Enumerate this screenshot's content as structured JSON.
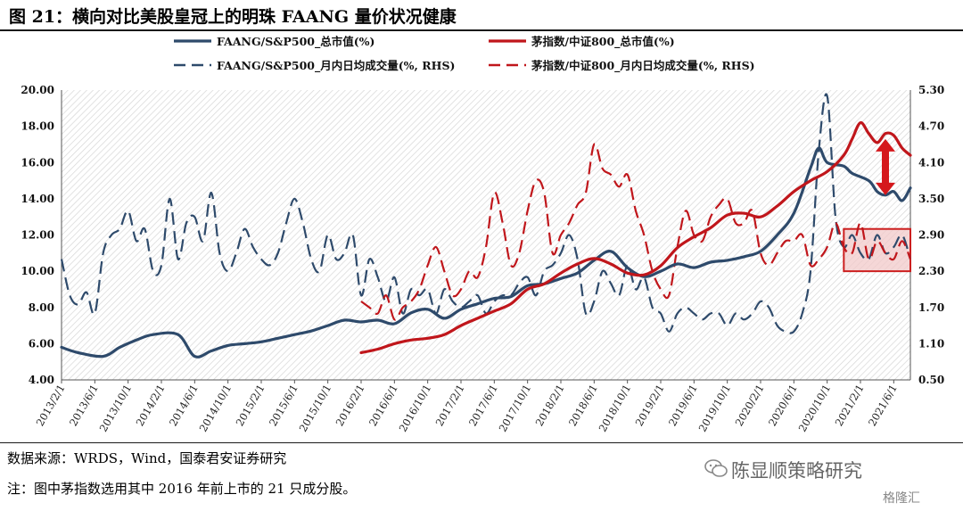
{
  "header": {
    "title": "图 21：横向对比美股皇冠上的明珠 FAANG 量价状况健康"
  },
  "footer": {
    "source": "数据来源：WRDS，Wind，国泰君安证券研究",
    "note": "注：图中茅指数选用其中 2016 年前上市的 21 只成分股。",
    "brand": "陈显顺策略研究",
    "corner_brand": "格隆汇"
  },
  "icons": {
    "brand": "wechat-icon",
    "highlight_arrow": "double-arrow-icon"
  },
  "colors": {
    "navy": "#2e4a6b",
    "red": "#c0161b",
    "highlight_fill": "#f2c9c9",
    "highlight_stroke": "#cc1f1f"
  },
  "chart_data": {
    "type": "line",
    "title": "",
    "ylim_left": [
      4,
      20
    ],
    "yticks_left": [
      "4.00",
      "6.00",
      "8.00",
      "10.00",
      "12.00",
      "14.00",
      "16.00",
      "18.00",
      "20.00"
    ],
    "ylim_right": [
      0.5,
      5.3
    ],
    "yticks_right": [
      "0.50",
      "1.10",
      "1.70",
      "2.30",
      "2.90",
      "3.50",
      "4.10",
      "4.70",
      "5.30"
    ],
    "x_range": [
      "2013/2/1",
      "2021/8/1"
    ],
    "xticks": [
      "2013/2/1",
      "2013/6/1",
      "2013/10/1",
      "2014/2/1",
      "2014/6/1",
      "2014/10/1",
      "2015/2/1",
      "2015/6/1",
      "2015/10/1",
      "2016/2/1",
      "2016/6/1",
      "2016/10/1",
      "2017/2/1",
      "2017/6/1",
      "2017/10/1",
      "2018/2/1",
      "2018/6/1",
      "2018/10/1",
      "2019/2/1",
      "2019/6/1",
      "2019/10/1",
      "2020/2/1",
      "2020/6/1",
      "2020/10/1",
      "2021/2/1",
      "2021/6/1"
    ],
    "grid": "hatched background",
    "legend_position": "top",
    "series": [
      {
        "name": "FAANG/S&P500_总市值(%)",
        "axis": "left",
        "style": "solid",
        "color": "#2e4a6b",
        "points": [
          [
            "2013/2/1",
            5.8
          ],
          [
            "2013/4/1",
            5.5
          ],
          [
            "2013/7/1",
            5.3
          ],
          [
            "2013/9/1",
            5.8
          ],
          [
            "2013/11/1",
            6.2
          ],
          [
            "2014/1/1",
            6.5
          ],
          [
            "2014/4/1",
            6.5
          ],
          [
            "2014/6/1",
            5.3
          ],
          [
            "2014/8/1",
            5.6
          ],
          [
            "2014/10/1",
            5.9
          ],
          [
            "2014/12/1",
            6.0
          ],
          [
            "2015/2/1",
            6.1
          ],
          [
            "2015/4/1",
            6.3
          ],
          [
            "2015/6/1",
            6.5
          ],
          [
            "2015/8/1",
            6.7
          ],
          [
            "2015/10/1",
            7.0
          ],
          [
            "2015/12/1",
            7.3
          ],
          [
            "2016/2/1",
            7.2
          ],
          [
            "2016/4/1",
            7.3
          ],
          [
            "2016/6/1",
            7.1
          ],
          [
            "2016/8/1",
            7.7
          ],
          [
            "2016/10/1",
            7.9
          ],
          [
            "2016/12/1",
            7.4
          ],
          [
            "2017/2/1",
            7.9
          ],
          [
            "2017/4/1",
            8.2
          ],
          [
            "2017/6/1",
            8.5
          ],
          [
            "2017/8/1",
            8.6
          ],
          [
            "2017/10/1",
            9.2
          ],
          [
            "2017/12/1",
            9.3
          ],
          [
            "2018/2/1",
            9.6
          ],
          [
            "2018/4/1",
            9.9
          ],
          [
            "2018/6/1",
            10.6
          ],
          [
            "2018/8/1",
            11.1
          ],
          [
            "2018/10/1",
            10.2
          ],
          [
            "2018/12/1",
            9.7
          ],
          [
            "2019/2/1",
            10.0
          ],
          [
            "2019/4/1",
            10.4
          ],
          [
            "2019/6/1",
            10.2
          ],
          [
            "2019/8/1",
            10.5
          ],
          [
            "2019/10/1",
            10.6
          ],
          [
            "2019/12/1",
            10.8
          ],
          [
            "2020/2/1",
            11.1
          ],
          [
            "2020/4/1",
            12.0
          ],
          [
            "2020/6/1",
            13.2
          ],
          [
            "2020/8/1",
            15.7
          ],
          [
            "2020/9/1",
            16.8
          ],
          [
            "2020/10/1",
            16.0
          ],
          [
            "2020/12/1",
            15.8
          ],
          [
            "2021/1/1",
            15.4
          ],
          [
            "2021/3/1",
            15.0
          ],
          [
            "2021/4/1",
            14.4
          ],
          [
            "2021/5/1",
            14.2
          ],
          [
            "2021/6/1",
            14.4
          ],
          [
            "2021/7/1",
            13.9
          ],
          [
            "2021/8/1",
            14.6
          ]
        ]
      },
      {
        "name": "茅指数/中证800_总市值(%)",
        "axis": "left",
        "style": "solid",
        "color": "#c0161b",
        "points": [
          [
            "2016/2/1",
            5.5
          ],
          [
            "2016/4/1",
            5.7
          ],
          [
            "2016/6/1",
            6.0
          ],
          [
            "2016/8/1",
            6.2
          ],
          [
            "2016/10/1",
            6.3
          ],
          [
            "2016/12/1",
            6.5
          ],
          [
            "2017/2/1",
            7.0
          ],
          [
            "2017/4/1",
            7.4
          ],
          [
            "2017/6/1",
            7.8
          ],
          [
            "2017/8/1",
            8.2
          ],
          [
            "2017/10/1",
            9.0
          ],
          [
            "2017/12/1",
            9.3
          ],
          [
            "2018/2/1",
            9.9
          ],
          [
            "2018/4/1",
            10.4
          ],
          [
            "2018/6/1",
            10.7
          ],
          [
            "2018/8/1",
            10.4
          ],
          [
            "2018/10/1",
            9.9
          ],
          [
            "2018/12/1",
            9.8
          ],
          [
            "2019/2/1",
            10.3
          ],
          [
            "2019/4/1",
            11.3
          ],
          [
            "2019/6/1",
            11.9
          ],
          [
            "2019/8/1",
            12.4
          ],
          [
            "2019/10/1",
            13.1
          ],
          [
            "2019/12/1",
            13.2
          ],
          [
            "2020/2/1",
            13.0
          ],
          [
            "2020/4/1",
            13.6
          ],
          [
            "2020/6/1",
            14.4
          ],
          [
            "2020/8/1",
            15.0
          ],
          [
            "2020/10/1",
            15.5
          ],
          [
            "2020/12/1",
            16.4
          ],
          [
            "2021/1/1",
            17.3
          ],
          [
            "2021/2/1",
            18.2
          ],
          [
            "2021/3/1",
            17.6
          ],
          [
            "2021/4/1",
            17.1
          ],
          [
            "2021/5/1",
            17.6
          ],
          [
            "2021/6/1",
            17.5
          ],
          [
            "2021/7/1",
            16.8
          ],
          [
            "2021/8/1",
            16.4
          ]
        ]
      },
      {
        "name": "FAANG/S&P500_月内日均成交量(%, RHS)",
        "axis": "right",
        "style": "dashed",
        "color": "#2e4a6b",
        "points": [
          [
            "2013/2/1",
            2.5
          ],
          [
            "2013/3/1",
            1.9
          ],
          [
            "2013/4/1",
            1.75
          ],
          [
            "2013/5/1",
            1.95
          ],
          [
            "2013/6/1",
            1.6
          ],
          [
            "2013/7/1",
            2.6
          ],
          [
            "2013/8/1",
            2.9
          ],
          [
            "2013/9/1",
            3.0
          ],
          [
            "2013/10/1",
            3.3
          ],
          [
            "2013/11/1",
            2.8
          ],
          [
            "2013/12/1",
            3.0
          ],
          [
            "2014/1/1",
            2.3
          ],
          [
            "2014/2/1",
            2.4
          ],
          [
            "2014/3/1",
            3.5
          ],
          [
            "2014/4/1",
            2.5
          ],
          [
            "2014/5/1",
            3.1
          ],
          [
            "2014/6/1",
            3.2
          ],
          [
            "2014/7/1",
            2.8
          ],
          [
            "2014/8/1",
            3.6
          ],
          [
            "2014/9/1",
            2.6
          ],
          [
            "2014/10/1",
            2.3
          ],
          [
            "2014/11/1",
            2.6
          ],
          [
            "2014/12/1",
            3.0
          ],
          [
            "2015/1/1",
            2.7
          ],
          [
            "2015/2/1",
            2.5
          ],
          [
            "2015/3/1",
            2.4
          ],
          [
            "2015/4/1",
            2.6
          ],
          [
            "2015/5/1",
            3.1
          ],
          [
            "2015/6/1",
            3.5
          ],
          [
            "2015/7/1",
            3.1
          ],
          [
            "2015/8/1",
            2.5
          ],
          [
            "2015/9/1",
            2.3
          ],
          [
            "2015/10/1",
            2.9
          ],
          [
            "2015/11/1",
            2.5
          ],
          [
            "2015/12/1",
            2.6
          ],
          [
            "2016/1/1",
            2.9
          ],
          [
            "2016/2/1",
            1.9
          ],
          [
            "2016/3/1",
            2.5
          ],
          [
            "2016/4/1",
            2.2
          ],
          [
            "2016/5/1",
            1.8
          ],
          [
            "2016/6/1",
            2.2
          ],
          [
            "2016/7/1",
            1.6
          ],
          [
            "2016/8/1",
            2.0
          ],
          [
            "2016/9/1",
            1.9
          ],
          [
            "2016/10/1",
            2.0
          ],
          [
            "2016/11/1",
            1.6
          ],
          [
            "2016/12/1",
            2.0
          ],
          [
            "2017/1/1",
            1.8
          ],
          [
            "2017/2/1",
            1.7
          ],
          [
            "2017/3/1",
            1.8
          ],
          [
            "2017/4/1",
            1.9
          ],
          [
            "2017/5/1",
            1.6
          ],
          [
            "2017/6/1",
            1.8
          ],
          [
            "2017/7/1",
            1.9
          ],
          [
            "2017/8/1",
            1.9
          ],
          [
            "2017/9/1",
            2.1
          ],
          [
            "2017/10/1",
            2.2
          ],
          [
            "2017/11/1",
            1.9
          ],
          [
            "2017/12/1",
            2.3
          ],
          [
            "2018/1/1",
            2.4
          ],
          [
            "2018/2/1",
            2.6
          ],
          [
            "2018/3/1",
            2.9
          ],
          [
            "2018/4/1",
            2.5
          ],
          [
            "2018/5/1",
            1.6
          ],
          [
            "2018/6/1",
            1.8
          ],
          [
            "2018/7/1",
            2.3
          ],
          [
            "2018/8/1",
            2.1
          ],
          [
            "2018/9/1",
            1.9
          ],
          [
            "2018/10/1",
            2.4
          ],
          [
            "2018/11/1",
            2.0
          ],
          [
            "2018/12/1",
            2.2
          ],
          [
            "2019/1/1",
            1.7
          ],
          [
            "2019/2/1",
            1.6
          ],
          [
            "2019/3/1",
            1.3
          ],
          [
            "2019/4/1",
            1.6
          ],
          [
            "2019/5/1",
            1.7
          ],
          [
            "2019/6/1",
            1.6
          ],
          [
            "2019/7/1",
            1.5
          ],
          [
            "2019/8/1",
            1.6
          ],
          [
            "2019/9/1",
            1.6
          ],
          [
            "2019/10/1",
            1.4
          ],
          [
            "2019/11/1",
            1.6
          ],
          [
            "2019/12/1",
            1.5
          ],
          [
            "2020/1/1",
            1.6
          ],
          [
            "2020/2/1",
            1.8
          ],
          [
            "2020/3/1",
            1.7
          ],
          [
            "2020/4/1",
            1.4
          ],
          [
            "2020/5/1",
            1.3
          ],
          [
            "2020/6/1",
            1.3
          ],
          [
            "2020/7/1",
            1.6
          ],
          [
            "2020/8/1",
            2.3
          ],
          [
            "2020/9/1",
            4.3
          ],
          [
            "2020/10/1",
            5.2
          ],
          [
            "2020/11/1",
            3.2
          ],
          [
            "2020/12/1",
            2.7
          ],
          [
            "2021/1/1",
            2.9
          ],
          [
            "2021/2/1",
            2.6
          ],
          [
            "2021/3/1",
            2.5
          ],
          [
            "2021/4/1",
            2.9
          ],
          [
            "2021/5/1",
            2.6
          ],
          [
            "2021/6/1",
            2.7
          ],
          [
            "2021/7/1",
            2.9
          ],
          [
            "2021/8/1",
            2.5
          ]
        ]
      },
      {
        "name": "茅指数/中证800_月内日均成交量(%, RHS)",
        "axis": "right",
        "style": "dashed",
        "color": "#c0161b",
        "points": [
          [
            "2016/2/1",
            1.8
          ],
          [
            "2016/3/1",
            1.7
          ],
          [
            "2016/4/1",
            1.6
          ],
          [
            "2016/5/1",
            1.9
          ],
          [
            "2016/6/1",
            1.5
          ],
          [
            "2016/7/1",
            1.7
          ],
          [
            "2016/8/1",
            1.8
          ],
          [
            "2016/9/1",
            2.0
          ],
          [
            "2016/10/1",
            2.4
          ],
          [
            "2016/11/1",
            2.7
          ],
          [
            "2016/12/1",
            2.3
          ],
          [
            "2017/1/1",
            1.9
          ],
          [
            "2017/2/1",
            2.0
          ],
          [
            "2017/3/1",
            2.3
          ],
          [
            "2017/4/1",
            2.2
          ],
          [
            "2017/5/1",
            2.7
          ],
          [
            "2017/6/1",
            3.6
          ],
          [
            "2017/7/1",
            3.1
          ],
          [
            "2017/8/1",
            2.4
          ],
          [
            "2017/9/1",
            2.6
          ],
          [
            "2017/10/1",
            3.3
          ],
          [
            "2017/11/1",
            3.8
          ],
          [
            "2017/12/1",
            3.6
          ],
          [
            "2018/1/1",
            2.6
          ],
          [
            "2018/2/1",
            2.9
          ],
          [
            "2018/3/1",
            3.1
          ],
          [
            "2018/4/1",
            3.4
          ],
          [
            "2018/5/1",
            3.6
          ],
          [
            "2018/6/1",
            4.4
          ],
          [
            "2018/7/1",
            4.0
          ],
          [
            "2018/8/1",
            3.9
          ],
          [
            "2018/9/1",
            3.7
          ],
          [
            "2018/10/1",
            3.9
          ],
          [
            "2018/11/1",
            3.3
          ],
          [
            "2018/12/1",
            2.9
          ],
          [
            "2019/1/1",
            2.3
          ],
          [
            "2019/2/1",
            2.0
          ],
          [
            "2019/3/1",
            1.9
          ],
          [
            "2019/4/1",
            2.7
          ],
          [
            "2019/5/1",
            3.3
          ],
          [
            "2019/6/1",
            2.9
          ],
          [
            "2019/7/1",
            2.8
          ],
          [
            "2019/8/1",
            3.2
          ],
          [
            "2019/9/1",
            3.4
          ],
          [
            "2019/10/1",
            3.5
          ],
          [
            "2019/11/1",
            3.1
          ],
          [
            "2019/12/1",
            3.1
          ],
          [
            "2020/1/1",
            3.3
          ],
          [
            "2020/2/1",
            2.6
          ],
          [
            "2020/3/1",
            2.4
          ],
          [
            "2020/4/1",
            2.6
          ],
          [
            "2020/5/1",
            2.8
          ],
          [
            "2020/6/1",
            2.8
          ],
          [
            "2020/7/1",
            2.9
          ],
          [
            "2020/8/1",
            2.4
          ],
          [
            "2020/9/1",
            2.5
          ],
          [
            "2020/10/1",
            2.7
          ],
          [
            "2020/11/1",
            3.1
          ],
          [
            "2020/12/1",
            2.7
          ],
          [
            "2021/1/1",
            2.6
          ],
          [
            "2021/2/1",
            3.1
          ],
          [
            "2021/3/1",
            2.5
          ],
          [
            "2021/4/1",
            2.8
          ],
          [
            "2021/5/1",
            2.6
          ],
          [
            "2021/6/1",
            2.5
          ],
          [
            "2021/7/1",
            2.8
          ],
          [
            "2021/8/1",
            2.5
          ]
        ]
      }
    ],
    "annotations": [
      {
        "type": "highlight_box",
        "x_range": [
          "2020/12/1",
          "2021/8/1"
        ],
        "y_range_right": [
          2.3,
          3.0
        ]
      },
      {
        "type": "double_arrow",
        "x": "2021/5/1",
        "y_range_left": [
          14.2,
          17.3
        ]
      }
    ]
  }
}
